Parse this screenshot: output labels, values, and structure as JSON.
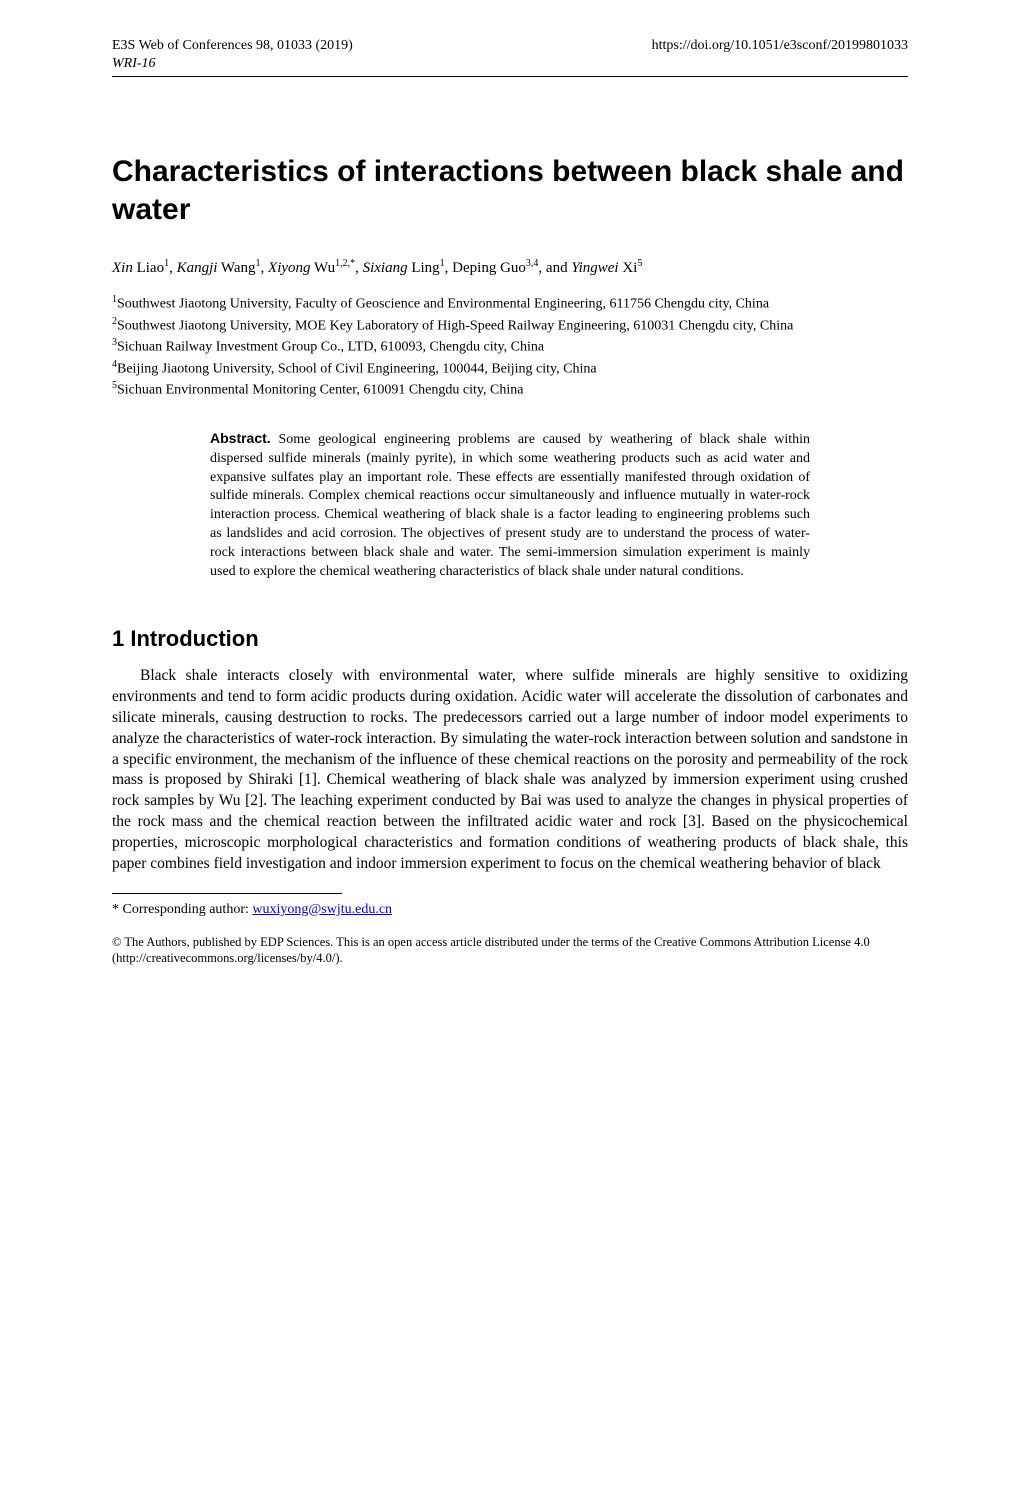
{
  "header": {
    "journal_line": "E3S Web of Conferences 98, 01033 (2019)",
    "doi": "https://doi.org/10.1051/e3sconf/20199801033",
    "conference": "WRI-16"
  },
  "title": "Characteristics of interactions between black shale and water",
  "authors_html_parts": {
    "a1_given": "Xin",
    "a1_surname": " Liao",
    "a1_sup": "1",
    "sep1": ", ",
    "a2_given": "Kangji",
    "a2_surname": " Wang",
    "a2_sup": "1",
    "sep2": ", ",
    "a3_given": "Xiyong",
    "a3_surname": " Wu",
    "a3_sup": "1,2,*",
    "sep3": ", ",
    "a4_given": "Sixiang",
    "a4_surname": " Ling",
    "a4_sup": "1",
    "sep4": ", Deping Guo",
    "a5_sup": "3,4",
    "sep5": ", and ",
    "a6_given": "Yingwei",
    "a6_surname": " Xi",
    "a6_sup": "5"
  },
  "affiliations": {
    "l1_sup": "1",
    "l1": "Southwest Jiaotong University, Faculty of Geoscience and Environmental Engineering, 611756 Chengdu city, China",
    "l2_sup": "2",
    "l2": "Southwest Jiaotong University, MOE Key Laboratory of High-Speed Railway Engineering, 610031 Chengdu city, China",
    "l3_sup": "3",
    "l3": "Sichuan Railway Investment Group Co., LTD, 610093, Chengdu city, China",
    "l4_sup": "4",
    "l4": "Beijing Jiaotong University, School of Civil Engineering, 100044, Beijing city, China",
    "l5_sup": "5",
    "l5": "Sichuan Environmental Monitoring Center, 610091 Chengdu city, China"
  },
  "abstract": {
    "label": "Abstract.",
    "text": " Some geological engineering problems are caused by weathering of black shale within dispersed sulfide minerals (mainly pyrite), in which some weathering products such as acid water and expansive sulfates play an important role. These effects are essentially manifested through oxidation of sulfide minerals. Complex chemical reactions occur simultaneously and influence mutually in water-rock interaction process. Chemical weathering of black shale is a factor leading to engineering problems such as landslides and acid corrosion. The objectives of present study are to understand the process of water-rock interactions between black shale and water. The semi-immersion simulation experiment is mainly used to explore the chemical weathering characteristics of black shale under natural conditions."
  },
  "section1": {
    "heading": "1 Introduction",
    "paragraph": "Black shale interacts closely with environmental water, where sulfide minerals are highly sensitive to oxidizing environments and tend to form acidic products during oxidation. Acidic water will accelerate the dissolution of carbonates and silicate minerals, causing destruction to rocks. The predecessors carried out a large number of indoor model experiments to analyze the characteristics of water-rock interaction. By simulating the water-rock interaction between solution and sandstone in a specific environment, the mechanism of the influence of these chemical reactions on the porosity and permeability of the rock mass is proposed by Shiraki [1]. Chemical weathering of black shale was analyzed by immersion experiment using crushed rock samples by Wu [2]. The leaching experiment conducted by Bai was used to analyze the changes in physical properties of the rock mass and the chemical reaction between the infiltrated acidic water and rock [3]. Based on the physicochemical properties, microscopic morphological characteristics and formation conditions of weathering products of black shale, this paper combines field investigation and indoor immersion experiment to focus on the chemical weathering behavior of black"
  },
  "footnote": {
    "marker": "*",
    "text": " Corresponding author: ",
    "email": "wuxiyong@swjtu.edu.cn"
  },
  "license": "© The Authors, published by EDP Sciences. This is an open access article distributed under the terms of the Creative Commons Attribution License 4.0 (http://creativecommons.org/licenses/by/4.0/).",
  "styling": {
    "page_bg": "#ffffff",
    "text_color": "#000000",
    "link_color": "#0000ee",
    "title_font": "Arial",
    "title_size_pt": 22,
    "body_font": "Times New Roman",
    "body_size_pt": 11.5,
    "abstract_size_pt": 10.5,
    "header_size_pt": 10.5,
    "rule_color": "#000000"
  }
}
